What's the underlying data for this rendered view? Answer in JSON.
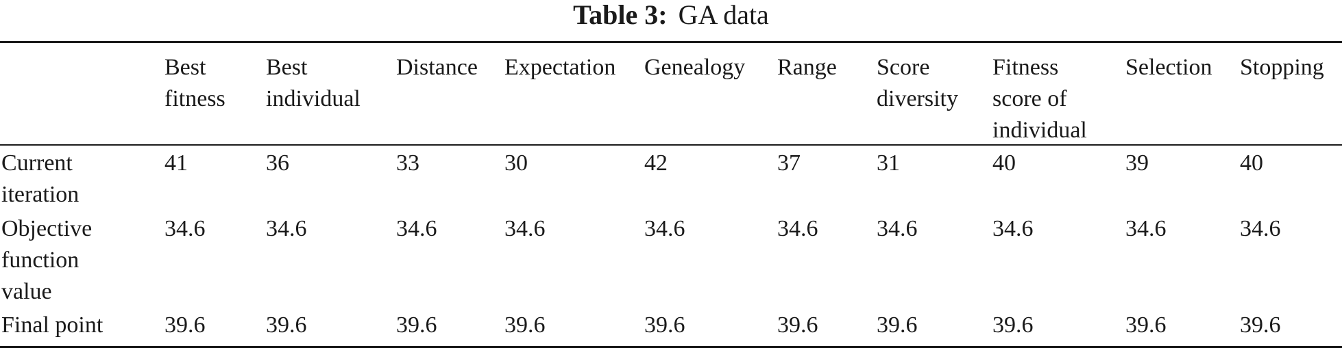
{
  "table": {
    "caption_label": "Table 3:",
    "caption_title": "GA data",
    "corner": "",
    "columns": [
      "Best\nfitness",
      "Best\nindividual",
      "Distance",
      "Expectation",
      "Genealogy",
      "Range",
      "Score\ndiversity",
      "Fitness\nscore of\nindividual",
      "Selection",
      "Stopping"
    ],
    "rows": [
      {
        "label": "Current\niteration",
        "values": [
          "41",
          "36",
          "33",
          "30",
          "42",
          "37",
          "31",
          "40",
          "39",
          "40"
        ]
      },
      {
        "label": "Objective\nfunction\nvalue",
        "values": [
          "34.6",
          "34.6",
          "34.6",
          "34.6",
          "34.6",
          "34.6",
          "34.6",
          "34.6",
          "34.6",
          "34.6"
        ]
      },
      {
        "label": "Final point",
        "values": [
          "39.6",
          "39.6",
          "39.6",
          "39.6",
          "39.6",
          "39.6",
          "39.6",
          "39.6",
          "39.6",
          "39.6"
        ]
      }
    ]
  }
}
